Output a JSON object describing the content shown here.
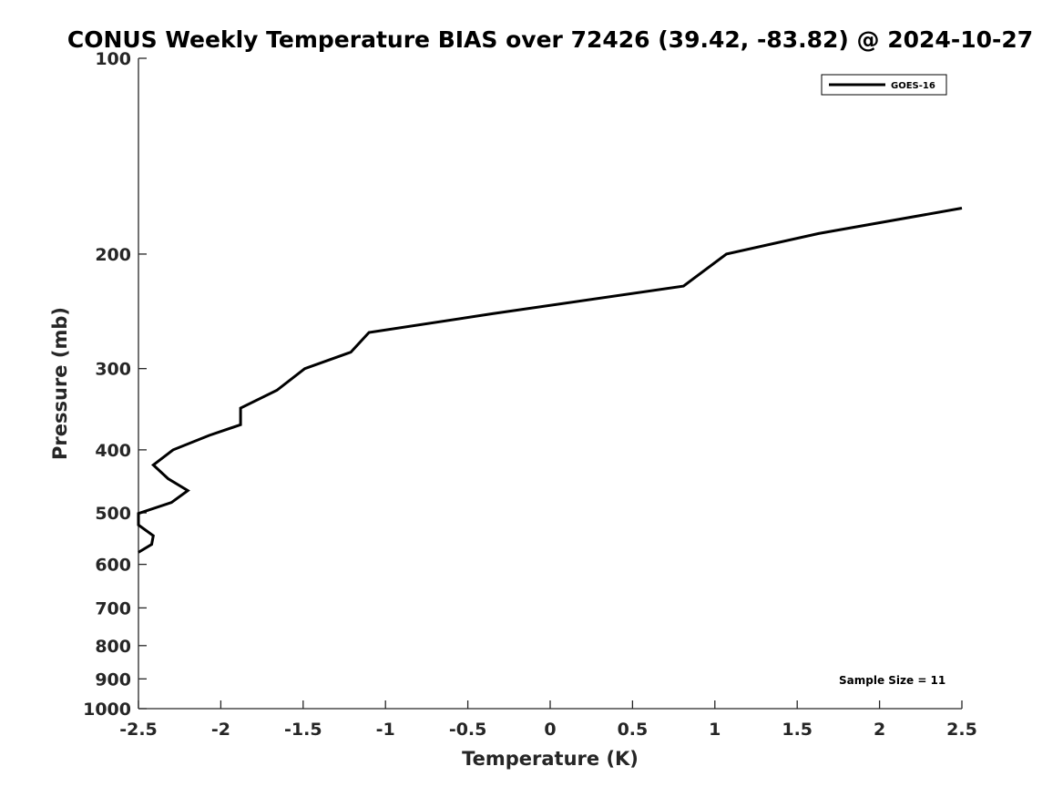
{
  "chart_data": {
    "type": "line",
    "title": "CONUS Weekly Temperature BIAS over 72426 (39.42, -83.82) @ 2024-10-27",
    "xlabel": "Temperature (K)",
    "ylabel": "Pressure (mb)",
    "xlim": [
      -2.5,
      2.5
    ],
    "ylim": [
      1000,
      100
    ],
    "y_scale": "log",
    "y_reversed": true,
    "grid": false,
    "legend_position": "top-right",
    "x_ticks": [
      -2.5,
      -2,
      -1.5,
      -1,
      -0.5,
      0,
      0.5,
      1,
      1.5,
      2,
      2.5
    ],
    "x_tick_labels": [
      "-2.5",
      "-2",
      "-1.5",
      "-1",
      "-0.5",
      "0",
      "0.5",
      "1",
      "1.5",
      "2",
      "2.5"
    ],
    "y_ticks": [
      100,
      200,
      300,
      400,
      500,
      600,
      700,
      800,
      900,
      1000
    ],
    "y_tick_labels": [
      "100",
      "200",
      "300",
      "400",
      "500",
      "600",
      "700",
      "800",
      "900",
      "1000"
    ],
    "series": [
      {
        "name": "GOES-16",
        "color": "#000000",
        "x": [
          2.5,
          1.63,
          1.07,
          0.81,
          -0.35,
          -1.1,
          -1.21,
          -1.49,
          -1.66,
          -1.88,
          -1.88,
          -2.07,
          -2.29,
          -2.41,
          -2.32,
          -2.2,
          -2.3,
          -2.5,
          -2.5,
          -2.41,
          -2.42,
          -2.5
        ],
        "y": [
          170,
          186,
          200,
          224,
          247,
          264,
          283,
          300,
          324,
          345,
          366,
          380,
          400,
          422,
          443,
          462,
          482,
          501,
          522,
          542,
          559,
          575
        ]
      }
    ],
    "annotations": [
      "Sample Size = 11"
    ]
  }
}
